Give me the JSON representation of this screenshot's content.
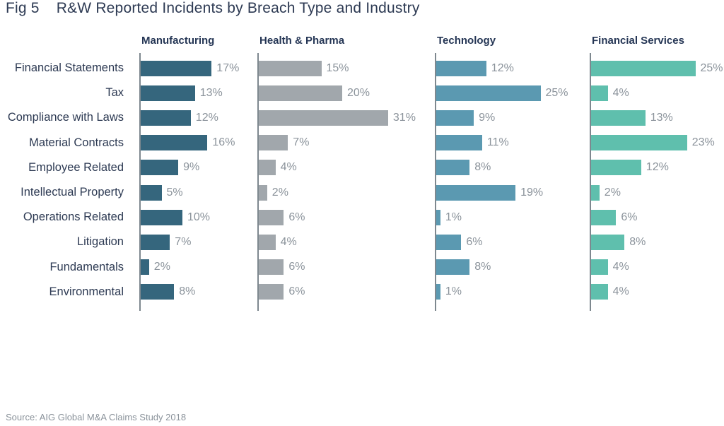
{
  "figure": {
    "label": "Fig 5",
    "title": "R&W Reported Incidents by Breach Type and Industry",
    "source": "Source: AIG Global M&A Claims Study 2018"
  },
  "colors": {
    "title_text": "#2d3a53",
    "axis_line": "#7e888f",
    "value_label": "#8b939b",
    "manufacturing_bar": "#35667d",
    "health_pharma_bar": "#a1a7ac",
    "technology_bar": "#5b99b1",
    "financial_services_bar": "#5fbfad"
  },
  "chart_data": {
    "type": "bar",
    "orientation": "horizontal",
    "title": "Fig 5  R&W Reported Incidents by Breach Type and Industry",
    "value_suffix": "%",
    "xlim": [
      0,
      33
    ],
    "grid": false,
    "legend_position": "column-headers-above-each-panel",
    "categories": [
      "Financial Statements",
      "Tax",
      "Compliance with Laws",
      "Material Contracts",
      "Employee Related",
      "Intellectual Property",
      "Operations Related",
      "Litigation",
      "Fundamentals",
      "Environmental"
    ],
    "series": [
      {
        "name": "Manufacturing",
        "color": "#35667d",
        "values": [
          17,
          13,
          12,
          16,
          9,
          5,
          10,
          7,
          2,
          8
        ]
      },
      {
        "name": "Health & Pharma",
        "color": "#a1a7ac",
        "values": [
          15,
          20,
          31,
          7,
          4,
          2,
          6,
          4,
          6,
          6
        ]
      },
      {
        "name": "Technology",
        "color": "#5b99b1",
        "values": [
          12,
          25,
          9,
          11,
          8,
          19,
          1,
          6,
          8,
          1
        ]
      },
      {
        "name": "Financial Services",
        "color": "#5fbfad",
        "values": [
          25,
          4,
          13,
          23,
          12,
          2,
          6,
          8,
          4,
          4
        ]
      }
    ]
  }
}
